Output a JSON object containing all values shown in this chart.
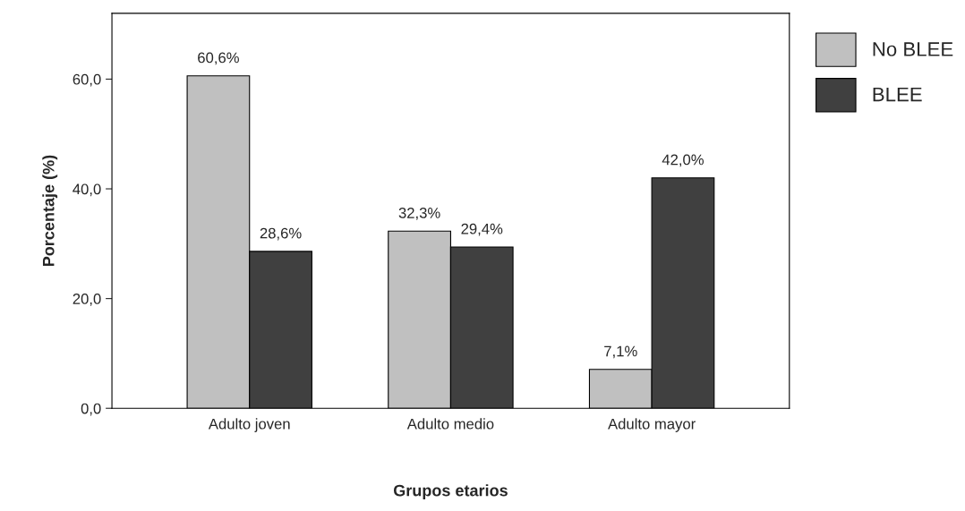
{
  "chart_data": {
    "type": "bar",
    "categories": [
      "Adulto joven",
      "Adulto medio",
      "Adulto mayor"
    ],
    "series": [
      {
        "name": "No BLEE",
        "color": "#c0c0c0",
        "values": [
          60.6,
          32.3,
          7.1
        ],
        "value_labels": [
          "60,6%",
          "32,3%",
          "7,1%"
        ]
      },
      {
        "name": "BLEE",
        "color": "#404040",
        "values": [
          28.6,
          29.4,
          42.0
        ],
        "value_labels": [
          "28,6%",
          "29,4%",
          "42,0%"
        ]
      }
    ],
    "xlabel": "Grupos etarios",
    "ylabel": "Porcentaje (%)",
    "ylim": [
      0,
      72
    ],
    "yticks": [
      {
        "value": 0,
        "label": "0,0"
      },
      {
        "value": 20,
        "label": "20,0"
      },
      {
        "value": 40,
        "label": "40,0"
      },
      {
        "value": 60,
        "label": "60,0"
      }
    ],
    "grid": false,
    "legend": "top right"
  }
}
